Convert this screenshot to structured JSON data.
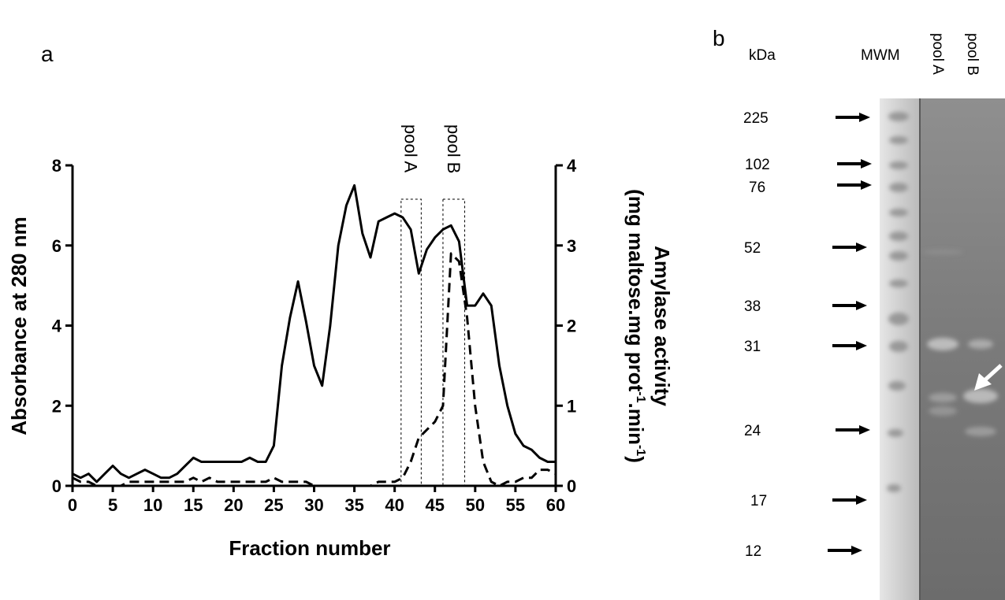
{
  "panels": {
    "a": "a",
    "b": "b"
  },
  "chart_data": {
    "type": "line",
    "xlabel": "Fraction number",
    "ylabel": "Absorbance at 280 nm",
    "y2label_line1": "Amylase  activity",
    "y2label_line2": "(mg maltose.mg prot",
    "y2label_sup1": "-1",
    "y2label_mid": ".min",
    "y2label_sup2": "-1",
    "y2label_end": ")",
    "xlim": [
      0,
      60
    ],
    "ylim": [
      0,
      8
    ],
    "y2lim": [
      0,
      4
    ],
    "xticks": [
      0,
      5,
      10,
      15,
      20,
      25,
      30,
      35,
      40,
      45,
      50,
      55,
      60
    ],
    "yticks": [
      0,
      2,
      4,
      6,
      8
    ],
    "y2ticks": [
      0,
      1,
      2,
      3,
      4
    ],
    "pools": [
      {
        "label": "pool A",
        "x": [
          40.8,
          43.3
        ]
      },
      {
        "label": "pool B",
        "x": [
          46,
          48.7
        ]
      }
    ],
    "series": [
      {
        "style": "solid",
        "axis": "left",
        "x": [
          0,
          1,
          2,
          3,
          4,
          5,
          6,
          7,
          8,
          9,
          10,
          11,
          12,
          13,
          14,
          15,
          16,
          17,
          18,
          19,
          20,
          21,
          22,
          23,
          24,
          25,
          26,
          27,
          28,
          29,
          30,
          31,
          32,
          33,
          34,
          35,
          36,
          37,
          38,
          39,
          40,
          41,
          42,
          43,
          44,
          45,
          46,
          47,
          48,
          49,
          50,
          51,
          52,
          53,
          54,
          55,
          56,
          57,
          58,
          59,
          60
        ],
        "values": [
          0.3,
          0.2,
          0.3,
          0.1,
          0.3,
          0.5,
          0.3,
          0.2,
          0.3,
          0.4,
          0.3,
          0.2,
          0.2,
          0.3,
          0.5,
          0.7,
          0.6,
          0.6,
          0.6,
          0.6,
          0.6,
          0.6,
          0.7,
          0.6,
          0.6,
          1.0,
          3.0,
          4.2,
          5.1,
          4.1,
          3.0,
          2.5,
          4.0,
          6.0,
          7.0,
          7.5,
          6.3,
          5.7,
          6.6,
          6.7,
          6.8,
          6.7,
          6.4,
          5.3,
          5.9,
          6.2,
          6.4,
          6.5,
          6.1,
          4.5,
          4.5,
          4.8,
          4.5,
          3.0,
          2.0,
          1.3,
          1.0,
          0.9,
          0.7,
          0.6,
          0.6
        ]
      },
      {
        "style": "dashed",
        "axis": "right",
        "x": [
          0,
          1,
          2,
          3,
          4,
          5,
          6,
          7,
          8,
          9,
          10,
          11,
          12,
          13,
          14,
          15,
          16,
          17,
          18,
          19,
          20,
          21,
          22,
          23,
          24,
          25,
          26,
          27,
          28,
          29,
          30,
          31,
          32,
          33,
          34,
          35,
          36,
          37,
          38,
          39,
          40,
          41,
          42,
          43,
          44,
          45,
          46,
          47,
          48,
          49,
          50,
          51,
          52,
          53,
          54,
          55,
          56,
          57,
          58,
          59,
          60
        ],
        "values": [
          0.1,
          0.05,
          0.05,
          0.0,
          0.0,
          0.0,
          0.0,
          0.05,
          0.05,
          0.05,
          0.05,
          0.05,
          0.05,
          0.05,
          0.05,
          0.1,
          0.05,
          0.1,
          0.05,
          0.05,
          0.05,
          0.05,
          0.05,
          0.05,
          0.05,
          0.1,
          0.05,
          0.05,
          0.05,
          0.05,
          0.0,
          0.0,
          0.0,
          0.0,
          0.0,
          0.0,
          0.0,
          0.0,
          0.05,
          0.05,
          0.05,
          0.1,
          0.3,
          0.6,
          0.7,
          0.8,
          1.0,
          2.9,
          2.8,
          2.1,
          1.0,
          0.3,
          0.05,
          0.0,
          0.05,
          0.05,
          0.1,
          0.1,
          0.2,
          0.2,
          0.15
        ]
      }
    ]
  },
  "gel": {
    "kda_label": "kDa",
    "lanes": [
      "MWM",
      "pool A",
      "pool B"
    ],
    "markers": [
      {
        "label": "225"
      },
      {
        "label": "102"
      },
      {
        "label": "76"
      },
      {
        "label": "52"
      },
      {
        "label": "38"
      },
      {
        "label": "31"
      },
      {
        "label": "24"
      },
      {
        "label": "17"
      },
      {
        "label": "12"
      }
    ]
  }
}
